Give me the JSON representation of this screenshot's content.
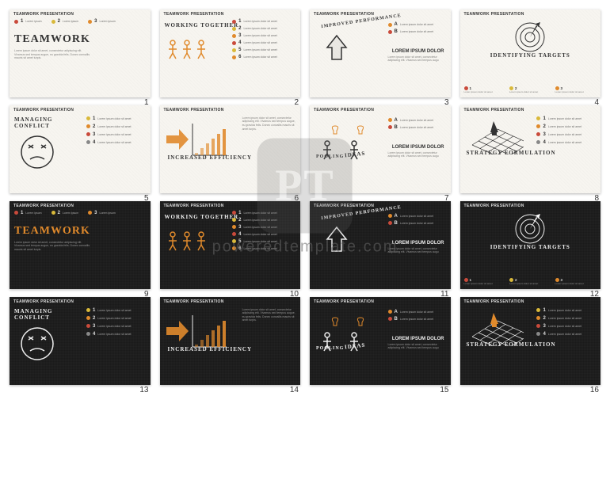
{
  "header": "TEAMWORK PRESENTATION",
  "watermark": {
    "logo_text": "PT",
    "url": "poweredtemplate.com"
  },
  "lorem_short": "Lorem ipsum dolor sit amet",
  "lorem_long": "Lorem ipsum dolor sit amet, consectetur adipiscing elit. Vivamus sed tempus augue, eu gravida felis. Donec convallis mauris sit amet turpis.",
  "colors": {
    "red": "#c94a3b",
    "orange": "#e08a2c",
    "yellow": "#d9b93a",
    "gray": "#888888",
    "dark_text": "#333333",
    "light_text": "#dddddd"
  },
  "slides": [
    {
      "n": 1,
      "theme": "light",
      "layout": "title",
      "title": "TEAMWORK"
    },
    {
      "n": 2,
      "theme": "light",
      "layout": "together",
      "title": "WORKING TOGETHER"
    },
    {
      "n": 3,
      "theme": "light",
      "layout": "improved",
      "title": "IMPROVED PERFORMANCE",
      "subtitle": "LOREM IPSUM DOLOR"
    },
    {
      "n": 4,
      "theme": "light",
      "layout": "targets",
      "title": "IDENTIFYING TARGETS"
    },
    {
      "n": 5,
      "theme": "light",
      "layout": "conflict",
      "title": "MANAGING CONFLICT"
    },
    {
      "n": 6,
      "theme": "light",
      "layout": "efficiency",
      "title": "INCREASED EFFICIENCY"
    },
    {
      "n": 7,
      "theme": "light",
      "layout": "ideas",
      "title": "POOLING",
      "title2": "IDEAS",
      "subtitle": "LOREM IPSUM DOLOR"
    },
    {
      "n": 8,
      "theme": "light",
      "layout": "strategy",
      "title": "STRATEGY FORMULATION"
    },
    {
      "n": 9,
      "theme": "dark",
      "layout": "title",
      "title": "TEAMWORK"
    },
    {
      "n": 10,
      "theme": "dark",
      "layout": "together",
      "title": "WORKING TOGETHER"
    },
    {
      "n": 11,
      "theme": "dark",
      "layout": "improved",
      "title": "IMPROVED PERFORMANCE",
      "subtitle": "LOREM IPSUM DOLOR"
    },
    {
      "n": 12,
      "theme": "dark",
      "layout": "targets",
      "title": "IDENTIFYING TARGETS"
    },
    {
      "n": 13,
      "theme": "dark",
      "layout": "conflict",
      "title": "MANAGING CONFLICT"
    },
    {
      "n": 14,
      "theme": "dark",
      "layout": "efficiency",
      "title": "INCREASED EFFICIENCY"
    },
    {
      "n": 15,
      "theme": "dark",
      "layout": "ideas",
      "title": "POOLING",
      "title2": "IDEAS",
      "subtitle": "LOREM IPSUM DOLOR"
    },
    {
      "n": 16,
      "theme": "dark",
      "layout": "strategy",
      "title": "STRATEGY FORMULATION"
    }
  ],
  "bullet_sets": {
    "three": [
      {
        "num": "1",
        "color": "#c94a3b"
      },
      {
        "num": "2",
        "color": "#d9b93a"
      },
      {
        "num": "3",
        "color": "#e08a2c"
      }
    ],
    "six": [
      {
        "num": "1",
        "color": "#c94a3b"
      },
      {
        "num": "2",
        "color": "#d9b93a"
      },
      {
        "num": "3",
        "color": "#e08a2c"
      },
      {
        "num": "4",
        "color": "#c94a3b"
      },
      {
        "num": "5",
        "color": "#d9b93a"
      },
      {
        "num": "6",
        "color": "#e08a2c"
      }
    ],
    "four": [
      {
        "num": "1",
        "color": "#d9b93a"
      },
      {
        "num": "2",
        "color": "#e08a2c"
      },
      {
        "num": "3",
        "color": "#c94a3b"
      },
      {
        "num": "4",
        "color": "#888888"
      }
    ],
    "letters": [
      {
        "num": "A",
        "color": "#e08a2c"
      },
      {
        "num": "B",
        "color": "#c94a3b"
      }
    ]
  }
}
